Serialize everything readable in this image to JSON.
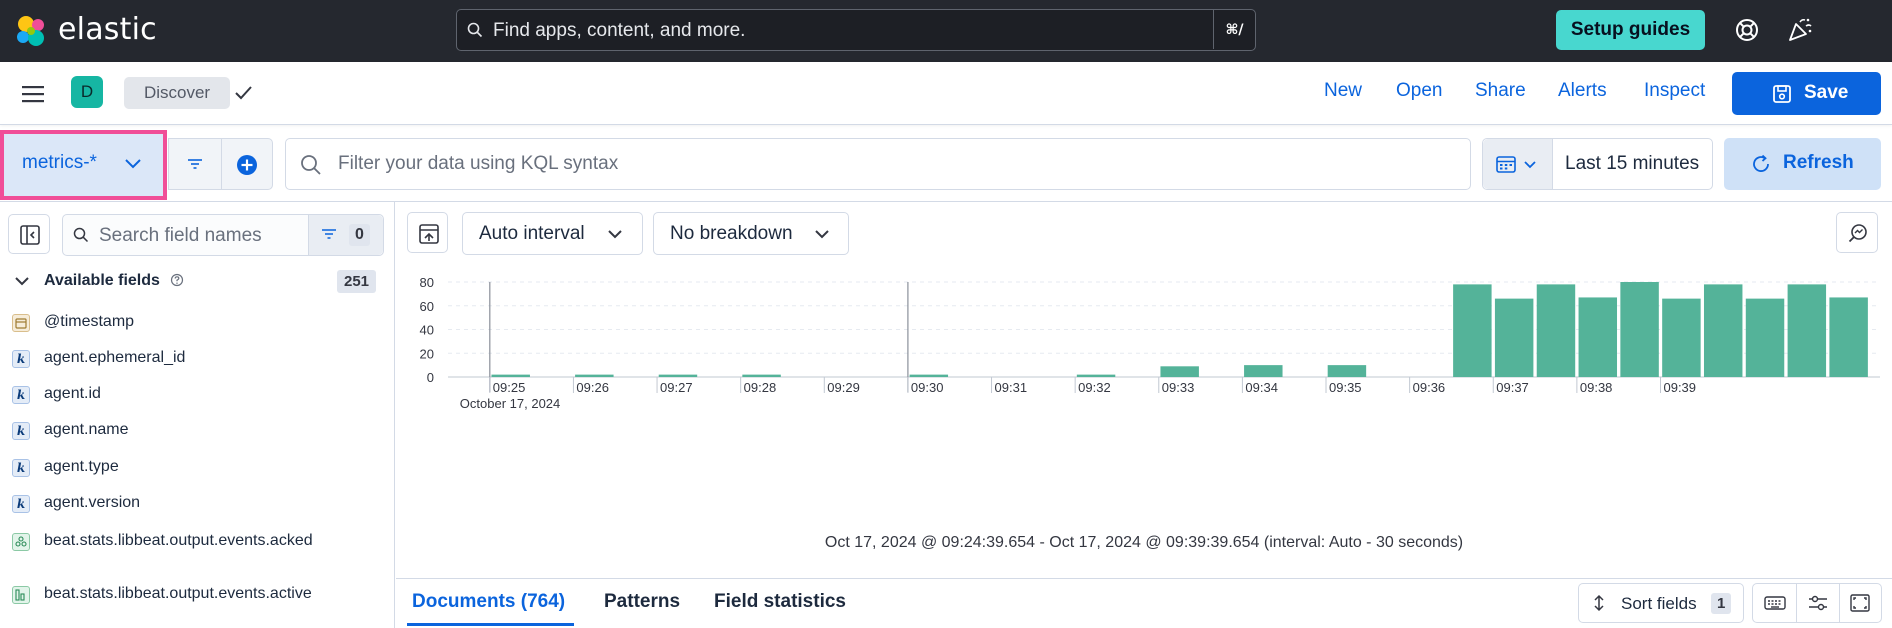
{
  "topbar": {
    "brand": "elastic",
    "search_placeholder": "Find apps, content, and more.",
    "search_shortcut": "⌘/",
    "setup_guides": "Setup guides"
  },
  "appbar": {
    "space_initial": "D",
    "breadcrumb": "Discover",
    "links": [
      "New",
      "Open",
      "Share",
      "Alerts",
      "Inspect"
    ],
    "save": "Save"
  },
  "query": {
    "data_view": "metrics-*",
    "kql_placeholder": "Filter your data using KQL syntax",
    "time_range": "Last 15 minutes",
    "refresh": "Refresh"
  },
  "sidebar": {
    "search_placeholder": "Search field names",
    "filter_count": "0",
    "available_label": "Available fields",
    "available_count": "251",
    "fields": [
      {
        "name": "@timestamp",
        "type": "date"
      },
      {
        "name": "agent.ephemeral_id",
        "type": "keyword"
      },
      {
        "name": "agent.id",
        "type": "keyword"
      },
      {
        "name": "agent.name",
        "type": "keyword"
      },
      {
        "name": "agent.type",
        "type": "keyword"
      },
      {
        "name": "agent.version",
        "type": "keyword"
      },
      {
        "name": "beat.stats.libbeat.output.events.acked",
        "type": "number"
      },
      {
        "name": "beat.stats.libbeat.output.events.active",
        "type": "number"
      }
    ],
    "keyword_token": "k"
  },
  "main": {
    "interval": "Auto interval",
    "breakdown": "No breakdown",
    "range_caption": "Oct 17, 2024 @ 09:24:39.654 - Oct 17, 2024 @ 09:39:39.654 (interval: Auto - 30 seconds)",
    "tabs": [
      "Documents (764)",
      "Patterns",
      "Field statistics"
    ],
    "sort_label": "Sort fields",
    "sort_count": "1"
  },
  "chart_data": {
    "type": "bar",
    "x_start": "09:24:30",
    "interval_seconds": 30,
    "tick_labels": [
      "09:25",
      "09:26",
      "09:27",
      "09:28",
      "09:29",
      "09:30",
      "09:31",
      "09:32",
      "09:33",
      "09:34",
      "09:35",
      "09:36",
      "09:37",
      "09:38",
      "09:39"
    ],
    "date_label": "October 17, 2024",
    "values": [
      0,
      2,
      0,
      2,
      0,
      2,
      0,
      2,
      0,
      0,
      0,
      2,
      0,
      0,
      0,
      2,
      0,
      9,
      0,
      10,
      0,
      10,
      0,
      0,
      78,
      66,
      78,
      67,
      80,
      66,
      78,
      66,
      78,
      67
    ],
    "ylim": [
      0,
      80
    ],
    "yticks": [
      0,
      20,
      40,
      60,
      80
    ],
    "color": "#54b399",
    "grid": true
  },
  "colors": {
    "accent": "#0b64dd",
    "setup": "#48d7cf",
    "highlight": "#f04e98",
    "bar": "#54b399"
  }
}
